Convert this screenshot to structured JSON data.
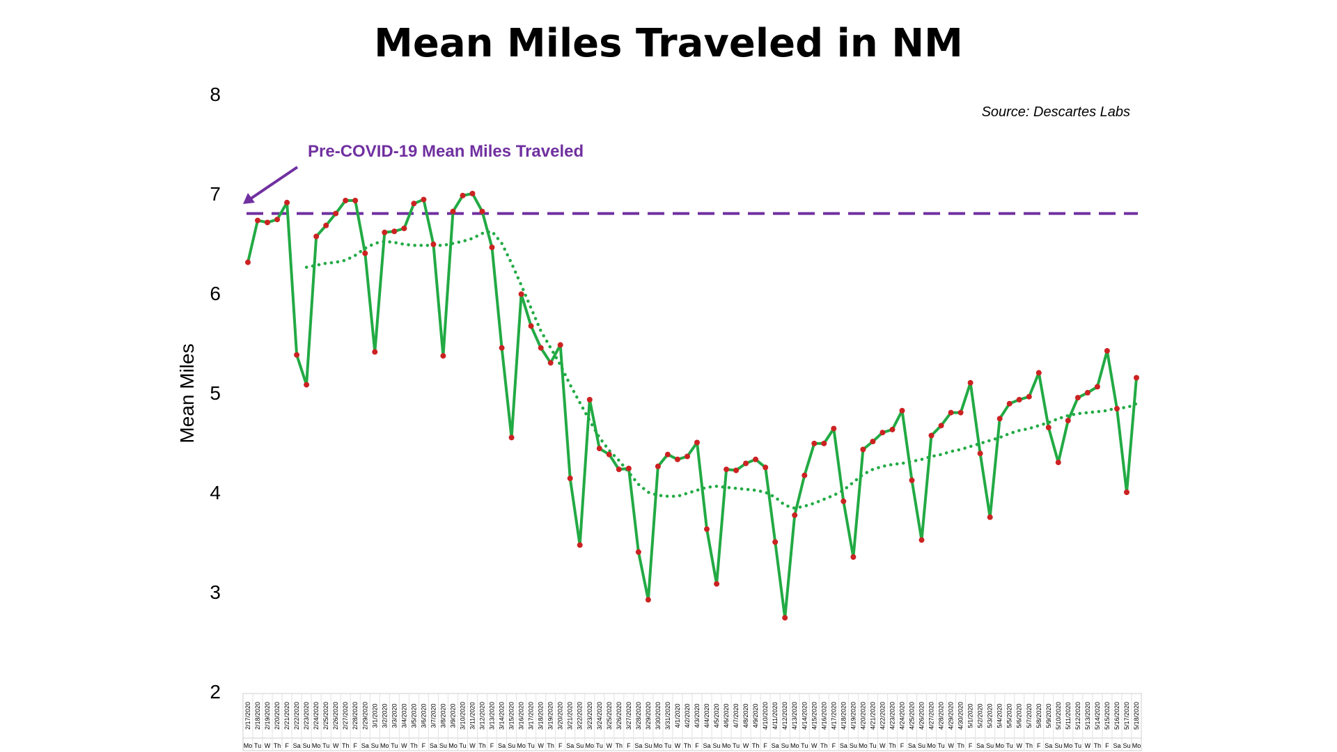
{
  "chart_data": {
    "type": "line",
    "title": "Mean Miles Traveled in NM",
    "ylabel": "Mean Miles",
    "xlabel": "",
    "ylim": [
      2,
      8
    ],
    "yticks": [
      2,
      3,
      4,
      5,
      6,
      7,
      8
    ],
    "grid": false,
    "source": "Source: Descartes Labs",
    "annotation": "Pre-COVID-19 Mean Miles Traveled",
    "baseline": {
      "value": 6.8,
      "color": "#7030a0",
      "style": "dashed"
    },
    "colors": {
      "series": "#22aa44",
      "markers": "#cc2222",
      "trend": "#22aa44",
      "annotation": "#7030a0"
    },
    "categories": [
      "2/17/2020",
      "2/18/2020",
      "2/19/2020",
      "2/20/2020",
      "2/21/2020",
      "2/22/2020",
      "2/23/2020",
      "2/24/2020",
      "2/25/2020",
      "2/26/2020",
      "2/27/2020",
      "2/28/2020",
      "2/29/2020",
      "3/1/2020",
      "3/2/2020",
      "3/3/2020",
      "3/4/2020",
      "3/5/2020",
      "3/6/2020",
      "3/7/2020",
      "3/8/2020",
      "3/9/2020",
      "3/10/2020",
      "3/11/2020",
      "3/12/2020",
      "3/13/2020",
      "3/14/2020",
      "3/15/2020",
      "3/16/2020",
      "3/17/2020",
      "3/18/2020",
      "3/19/2020",
      "3/20/2020",
      "3/21/2020",
      "3/22/2020",
      "3/23/2020",
      "3/24/2020",
      "3/25/2020",
      "3/26/2020",
      "3/27/2020",
      "3/28/2020",
      "3/29/2020",
      "3/30/2020",
      "3/31/2020",
      "4/1/2020",
      "4/2/2020",
      "4/3/2020",
      "4/4/2020",
      "4/5/2020",
      "4/6/2020",
      "4/7/2020",
      "4/8/2020",
      "4/9/2020",
      "4/10/2020",
      "4/11/2020",
      "4/12/2020",
      "4/13/2020",
      "4/14/2020",
      "4/15/2020",
      "4/16/2020",
      "4/17/2020",
      "4/18/2020",
      "4/19/2020",
      "4/20/2020",
      "4/21/2020",
      "4/22/2020",
      "4/23/2020",
      "4/24/2020",
      "4/25/2020",
      "4/26/2020",
      "4/27/2020",
      "4/28/2020",
      "4/29/2020",
      "4/30/2020",
      "5/1/2020",
      "5/2/2020",
      "5/3/2020",
      "5/4/2020",
      "5/5/2020",
      "5/6/2020",
      "5/7/2020",
      "5/8/2020",
      "5/9/2020",
      "5/10/2020",
      "5/11/2020",
      "5/12/2020",
      "5/13/2020",
      "5/14/2020",
      "5/15/2020",
      "5/16/2020",
      "5/17/2020",
      "5/18/2020"
    ],
    "day_labels": [
      "Mo",
      "Tu",
      "W",
      "Th",
      "F",
      "Sa",
      "Su",
      "Mo",
      "Tu",
      "W",
      "Th",
      "F",
      "Sa",
      "Su",
      "Mo",
      "Tu",
      "W",
      "Th",
      "F",
      "Sa",
      "Su",
      "Mo",
      "Tu",
      "W",
      "Th",
      "F",
      "Sa",
      "Su",
      "Mo",
      "Tu",
      "W",
      "Th",
      "F",
      "Sa",
      "Su",
      "Mo",
      "Tu",
      "W",
      "Th",
      "F",
      "Sa",
      "Su",
      "Mo",
      "Tu",
      "W",
      "Th",
      "F",
      "Sa",
      "Su",
      "Mo",
      "Tu",
      "W",
      "Th",
      "F",
      "Sa",
      "Su",
      "Mo",
      "Tu",
      "W",
      "Th",
      "F",
      "Sa",
      "Su",
      "Mo",
      "Tu",
      "W",
      "Th",
      "F",
      "Sa",
      "Su",
      "Mo",
      "Tu",
      "W",
      "Th",
      "F",
      "Sa",
      "Su",
      "Mo",
      "Tu",
      "W",
      "Th",
      "F",
      "Sa",
      "Su",
      "Mo",
      "Tu",
      "W",
      "Th",
      "F",
      "Sa",
      "Su",
      "Mo"
    ],
    "series": [
      {
        "name": "",
        "values": [
          6.31,
          6.73,
          6.71,
          6.74,
          6.91,
          5.38,
          5.08,
          6.57,
          6.68,
          6.8,
          6.93,
          6.93,
          6.4,
          5.41,
          6.61,
          6.62,
          6.65,
          6.9,
          6.94,
          6.49,
          5.37,
          6.82,
          6.98,
          7.0,
          6.82,
          6.46,
          5.45,
          4.55,
          5.99,
          5.67,
          5.45,
          5.3,
          5.48,
          4.14,
          3.47,
          4.93,
          4.44,
          4.38,
          4.23,
          4.24,
          3.4,
          2.92,
          4.26,
          4.38,
          4.33,
          4.36,
          4.5,
          3.63,
          3.08,
          4.23,
          4.22,
          4.29,
          4.33,
          4.25,
          3.5,
          2.74,
          3.77,
          4.17,
          4.49,
          4.49,
          4.64,
          3.91,
          3.35,
          4.43,
          4.51,
          4.6,
          4.63,
          4.82,
          4.12,
          3.52,
          4.57,
          4.67,
          4.8,
          4.8,
          5.1,
          4.39,
          3.75,
          4.74,
          4.89,
          4.93,
          4.96,
          5.2,
          4.65,
          4.3,
          4.72,
          4.95,
          5.0,
          5.06,
          5.42,
          4.84,
          4.0,
          5.15
        ]
      }
    ],
    "trend": {
      "name": "",
      "style": "dotted",
      "values": [
        null,
        null,
        null,
        null,
        null,
        null,
        6.26,
        6.28,
        6.3,
        6.31,
        6.33,
        6.38,
        6.45,
        6.5,
        6.52,
        6.51,
        6.49,
        6.48,
        6.48,
        6.48,
        6.48,
        6.5,
        6.52,
        6.55,
        6.6,
        6.62,
        6.5,
        6.3,
        6.08,
        5.85,
        5.62,
        5.45,
        5.28,
        5.08,
        4.9,
        4.72,
        4.55,
        4.42,
        4.32,
        4.2,
        4.08,
        4.0,
        3.97,
        3.96,
        3.96,
        3.99,
        4.02,
        4.05,
        4.06,
        4.05,
        4.04,
        4.03,
        4.02,
        4.0,
        3.95,
        3.87,
        3.84,
        3.86,
        3.89,
        3.93,
        3.97,
        4.02,
        4.1,
        4.18,
        4.23,
        4.26,
        4.28,
        4.29,
        4.31,
        4.33,
        4.36,
        4.38,
        4.41,
        4.43,
        4.46,
        4.49,
        4.52,
        4.55,
        4.59,
        4.62,
        4.64,
        4.67,
        4.7,
        4.74,
        4.77,
        4.79,
        4.8,
        4.81,
        4.82,
        4.85,
        4.85,
        4.89
      ]
    }
  }
}
